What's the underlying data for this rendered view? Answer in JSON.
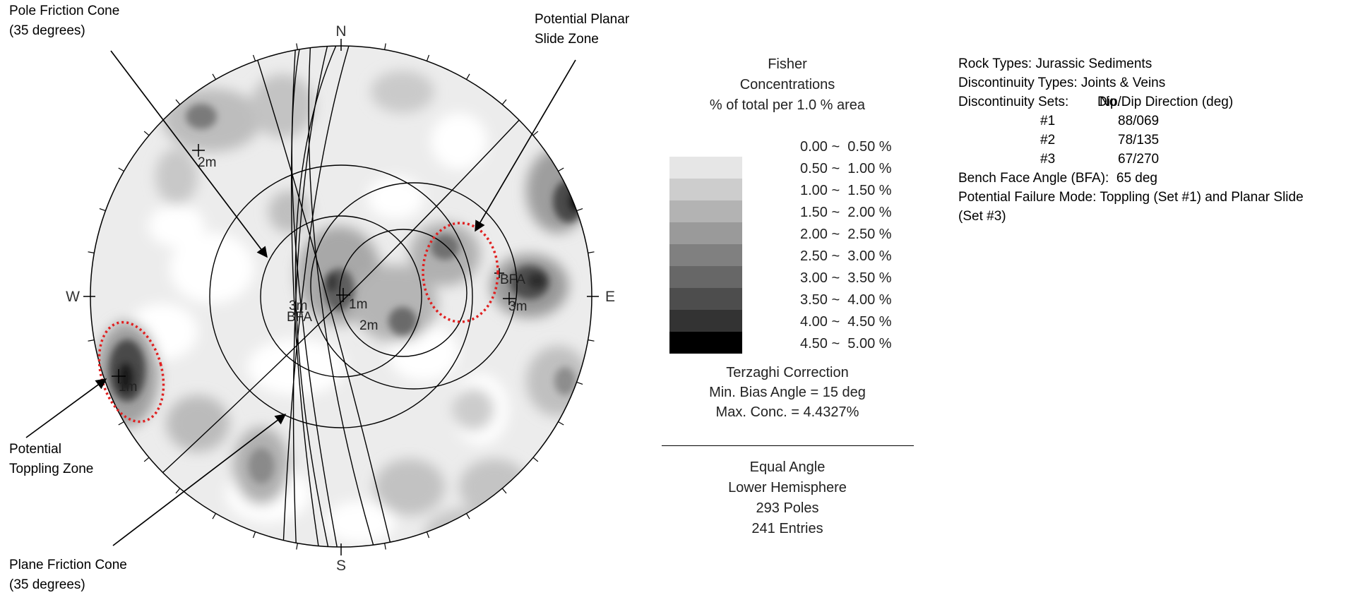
{
  "callouts": {
    "pole_friction_cone": [
      "Pole Friction Cone",
      "(35 degrees)"
    ],
    "potential_planar": [
      "Potential Planar",
      "Slide Zone"
    ],
    "potential_toppling": [
      "Potential",
      "Toppling Zone"
    ],
    "plane_friction_cone": [
      "Plane Friction Cone",
      "(35 degrees)"
    ]
  },
  "compass": {
    "n": "N",
    "s": "S",
    "e": "E",
    "w": "W"
  },
  "plot_labels": {
    "set2_m": "2m",
    "bfa_right": "BFA",
    "set3_m": "3m",
    "set1_m": "1m",
    "center_1m": "1m",
    "center_2m": "2m",
    "center_3m": "3m",
    "center_bfa": "BFA"
  },
  "legend": {
    "title": [
      "Fisher",
      "Concentrations",
      "% of total per 1.0 % area"
    ],
    "bins": [
      {
        "range": "0.00 ~  0.50 %",
        "color": "#ffffff"
      },
      {
        "range": "0.50 ~  1.00 %",
        "color": "#e6e6e6"
      },
      {
        "range": "1.00 ~  1.50 %",
        "color": "#cdcdcd"
      },
      {
        "range": "1.50 ~  2.00 %",
        "color": "#b3b3b3"
      },
      {
        "range": "2.00 ~  2.50 %",
        "color": "#9a9a9a"
      },
      {
        "range": "2.50 ~  3.00 %",
        "color": "#808080"
      },
      {
        "range": "3.00 ~  3.50 %",
        "color": "#676767"
      },
      {
        "range": "3.50 ~  4.00 %",
        "color": "#4d4d4d"
      },
      {
        "range": "4.00 ~  4.50 %",
        "color": "#333333"
      },
      {
        "range": "4.50 ~  5.00 %",
        "color": "#000000"
      }
    ],
    "correction": [
      "Terzaghi Correction",
      "Min. Bias Angle = 15 deg",
      "Max. Conc. = 4.4327%"
    ],
    "projection": [
      "Equal Angle",
      "Lower Hemisphere",
      "293 Poles",
      "241 Entries"
    ]
  },
  "notes": {
    "rock_types": "Rock Types: Jurassic Sediments",
    "discontinuity_types": "Discontinuity Types: Joints & Veins",
    "sets_label": "Discontinuity Sets:",
    "col_no": "No.",
    "col_dip": "Dip/Dip Direction (deg)",
    "sets": [
      {
        "no": "#1",
        "dip": "88/069"
      },
      {
        "no": "#2",
        "dip": "78/135"
      },
      {
        "no": "#3",
        "dip": "67/270"
      }
    ],
    "bfa": "Bench Face Angle (BFA):  65 deg",
    "failure_mode_1": "Potential Failure Mode: Toppling (Set #1) and Planar Slide",
    "failure_mode_2": "(Set #3)"
  },
  "highlight_color": "#e02020"
}
